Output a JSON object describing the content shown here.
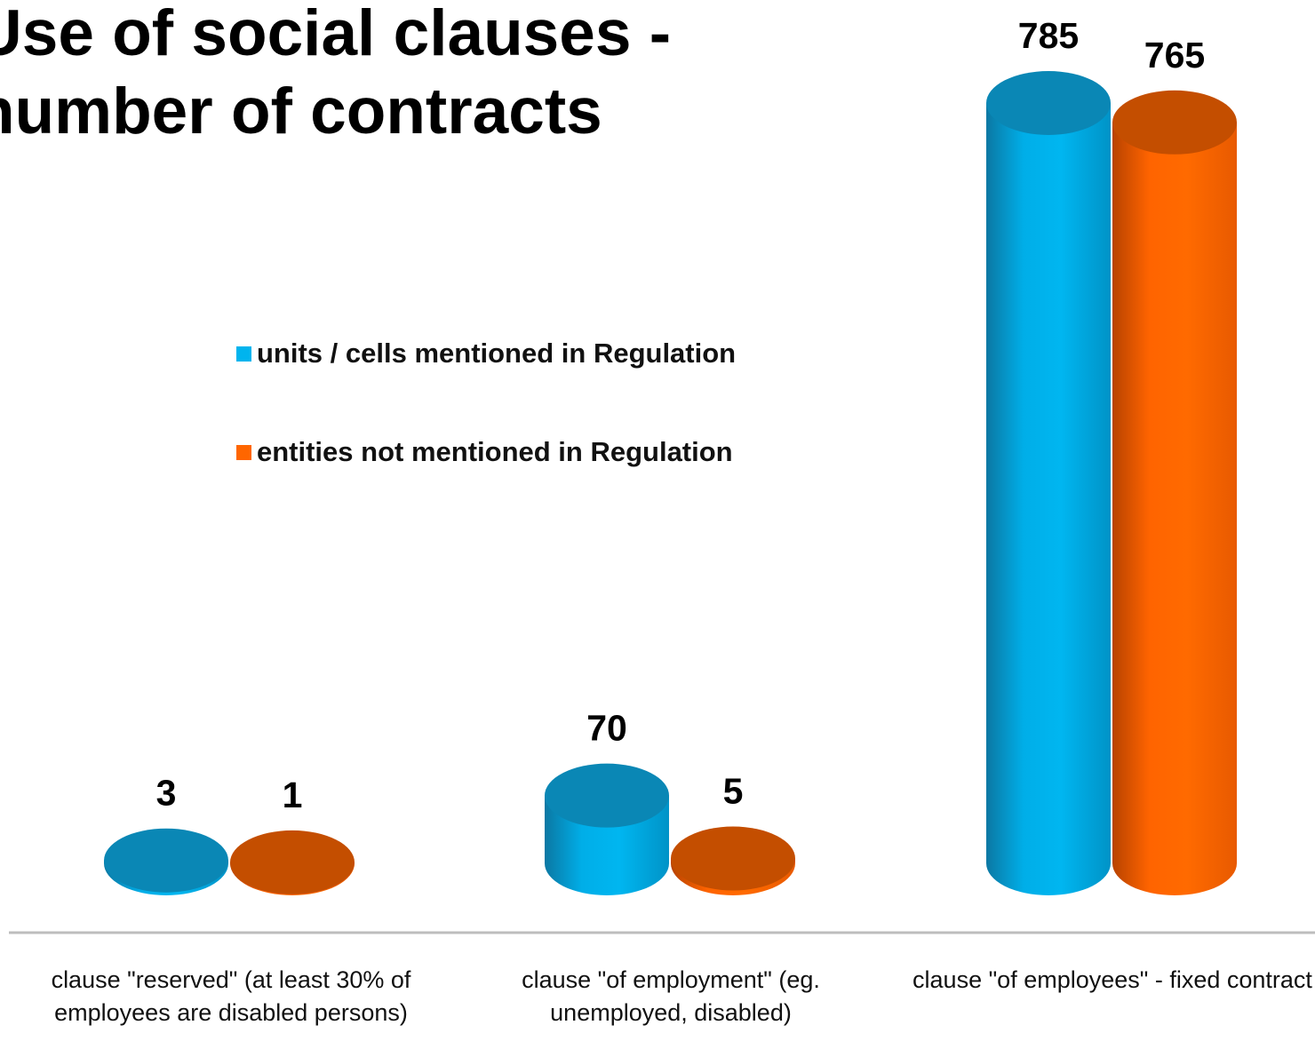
{
  "chart_data": {
    "type": "bar",
    "title_lines": [
      "Use of social clauses -",
      "number of contracts"
    ],
    "categories": [
      "clause \"reserved\" (at least 30% of employees are disabled persons)",
      "clause \"of employment\" (eg. unemployed, disabled)",
      "clause \"of employees\" - fixed contract"
    ],
    "series": [
      {
        "name": "units / cells mentioned in Regulation",
        "values": [
          3,
          70,
          785
        ],
        "color": "#00b4ee",
        "color_dark": "#0a87b5"
      },
      {
        "name": "entities not mentioned in Regulation",
        "values": [
          1,
          5,
          765
        ],
        "color": "#ff6600",
        "color_dark": "#c44e00"
      }
    ],
    "ylim": [
      0,
      785
    ],
    "legend_position": "center",
    "grid": false,
    "bar_shape": "cylinder",
    "data_labels": true
  }
}
